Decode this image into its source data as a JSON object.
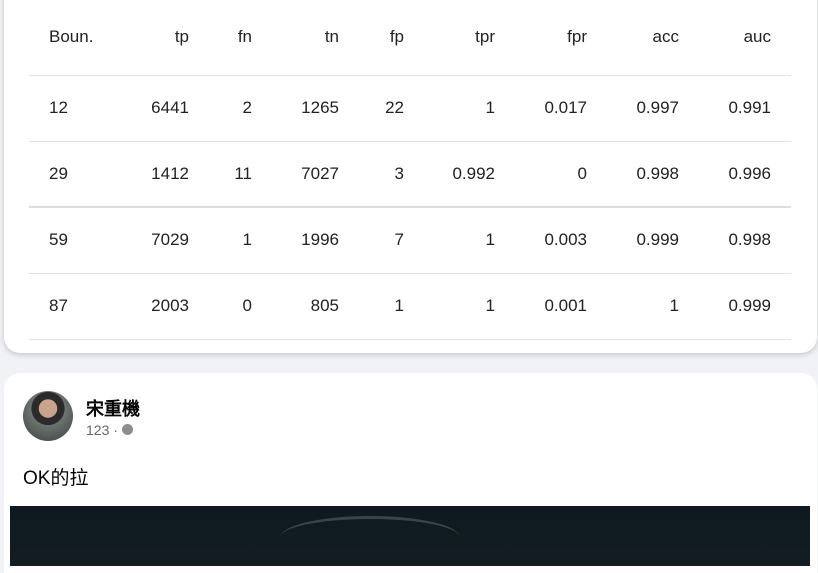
{
  "table": {
    "headers": [
      "Boun.",
      "tp",
      "fn",
      "tn",
      "fp",
      "tpr",
      "fpr",
      "acc",
      "auc"
    ],
    "rows": [
      [
        "12",
        "6441",
        "2",
        "1265",
        "22",
        "1",
        "0.017",
        "0.997",
        "0.991"
      ],
      [
        "29",
        "1412",
        "11",
        "7027",
        "3",
        "0.992",
        "0",
        "0.998",
        "0.996"
      ],
      [
        "59",
        "7029",
        "1",
        "1996",
        "7",
        "1",
        "0.003",
        "0.999",
        "0.998"
      ],
      [
        "87",
        "2003",
        "0",
        "805",
        "1",
        "1",
        "0.001",
        "1",
        "0.999"
      ]
    ]
  },
  "post": {
    "author": "宋重機",
    "meta": "123 ·",
    "privacy_icon": "globe-icon",
    "text": "OK的拉"
  }
}
